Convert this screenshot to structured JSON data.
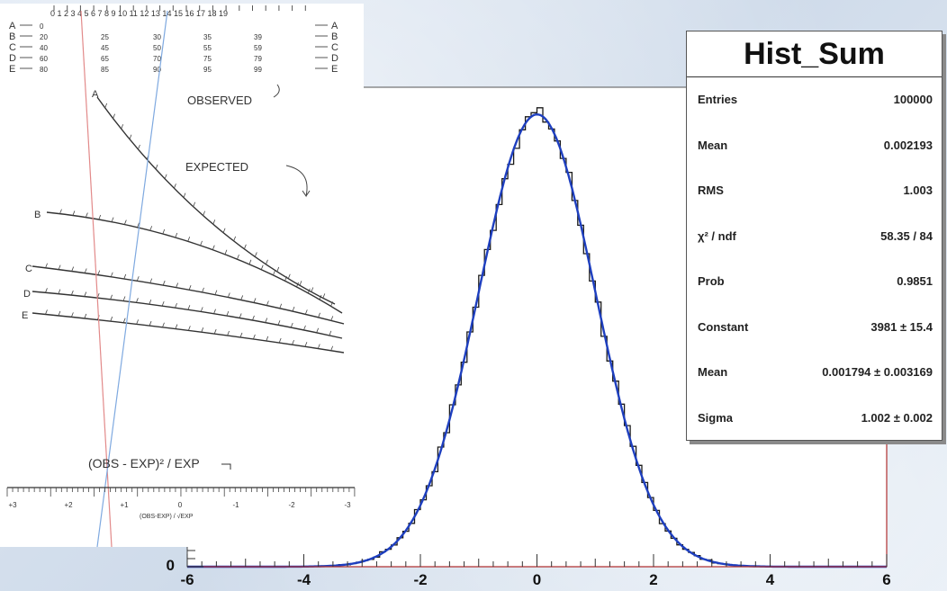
{
  "chart_data": {
    "type": "histogram",
    "title": "Hist_Sum",
    "xlim": [
      -6,
      6
    ],
    "x_ticks": [
      "-6",
      "-4",
      "-2",
      "0",
      "2",
      "4",
      "6"
    ],
    "y_tick_labels": [
      "0"
    ],
    "fit": "gaussian",
    "fit_params": {
      "constant": 3981,
      "mean": 0.001794,
      "sigma": 1.002
    },
    "colors": {
      "histogram": "#1a1a1a",
      "fit_curve": "#1e3fbf",
      "axis": "#b03030"
    },
    "stats": [
      {
        "label": "Entries",
        "value": "100000"
      },
      {
        "label": "Mean",
        "value": "0.002193"
      },
      {
        "label": "RMS",
        "value": "1.003"
      },
      {
        "label": "χ² / ndf",
        "value": "58.35 / 84"
      },
      {
        "label": "Prob",
        "value": "0.9851"
      },
      {
        "label": "Constant",
        "value": "3981 ± 15.4"
      },
      {
        "label": "Mean",
        "value": "0.001794 ± 0.003169"
      },
      {
        "label": "Sigma",
        "value": "1.002 ± 0.002"
      }
    ]
  },
  "nomogram": {
    "top_letters": [
      "A",
      "B",
      "C",
      "D",
      "E"
    ],
    "top_scale": "0 1 2 3 4 5 6 7 8 9 10 11 12 13 14 15 16 17 18 19",
    "top_rows": [
      {
        "letter": "A",
        "values": [
          "0",
          "",
          "",
          "",
          ""
        ]
      },
      {
        "letter": "B",
        "values": [
          "20",
          "25",
          "30",
          "35",
          "39"
        ]
      },
      {
        "letter": "C",
        "values": [
          "40",
          "45",
          "50",
          "55",
          "59"
        ]
      },
      {
        "letter": "D",
        "values": [
          "60",
          "65",
          "70",
          "75",
          "79"
        ]
      },
      {
        "letter": "E",
        "values": [
          "80",
          "85",
          "90",
          "95",
          "99"
        ]
      }
    ],
    "observed_label": "OBSERVED",
    "expected_label": "EXPECTED",
    "curve_letters": [
      "A",
      "B",
      "C",
      "D",
      "E"
    ],
    "formula_label": "(OBS - EXP)² / EXP",
    "bottom_scale_label": "(OBS-EXP) / √EXP",
    "bottom_ticks": [
      "+3",
      "+2",
      "+1",
      "0",
      "-1",
      "-2",
      "-3"
    ]
  }
}
